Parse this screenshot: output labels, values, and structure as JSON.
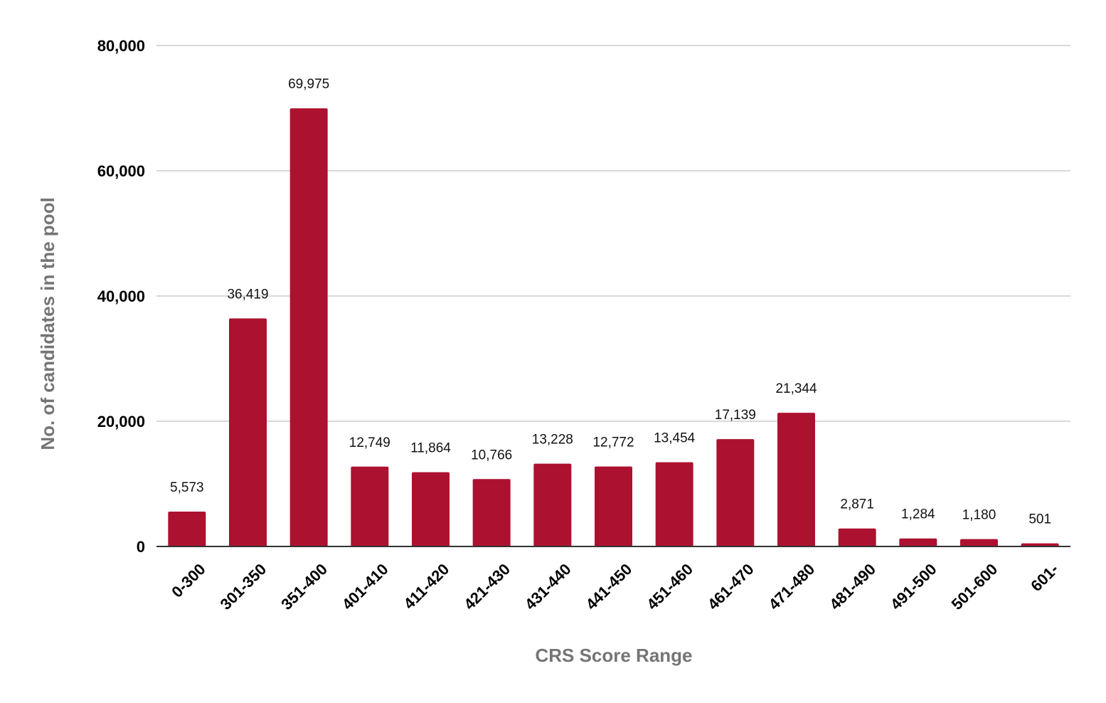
{
  "chart_data": {
    "type": "bar",
    "title": "",
    "xlabel": "CRS Score Range",
    "ylabel": "No. of candidates in the pool",
    "categories": [
      "0-300",
      "301-350",
      "351-400",
      "401-410",
      "411-420",
      "421-430",
      "431-440",
      "441-450",
      "451-460",
      "461-470",
      "471-480",
      "481-490",
      "491-500",
      "501-600",
      "601-"
    ],
    "series": [
      {
        "values": [
          5573,
          36419,
          69975,
          12749,
          11864,
          10766,
          13228,
          12772,
          13454,
          17139,
          21344,
          2871,
          1284,
          1180,
          501
        ],
        "data_labels": [
          "5,573",
          "36,419",
          "69,975",
          "12,749",
          "11,864",
          "10,766",
          "13,228",
          "12,772",
          "13,454",
          "17,139",
          "21,344",
          "2,871",
          "1,284",
          "1,180",
          "501"
        ]
      }
    ],
    "ylim": [
      0,
      80000
    ],
    "yticks": [
      0,
      20000,
      40000,
      60000,
      80000
    ],
    "ytick_labels": [
      "0",
      "20,000",
      "40,000",
      "60,000",
      "80,000"
    ],
    "grid": true,
    "legend": "none",
    "bar_color": "#ad1130",
    "gridline_color": "#cccccc",
    "axis_color": "#333333"
  }
}
